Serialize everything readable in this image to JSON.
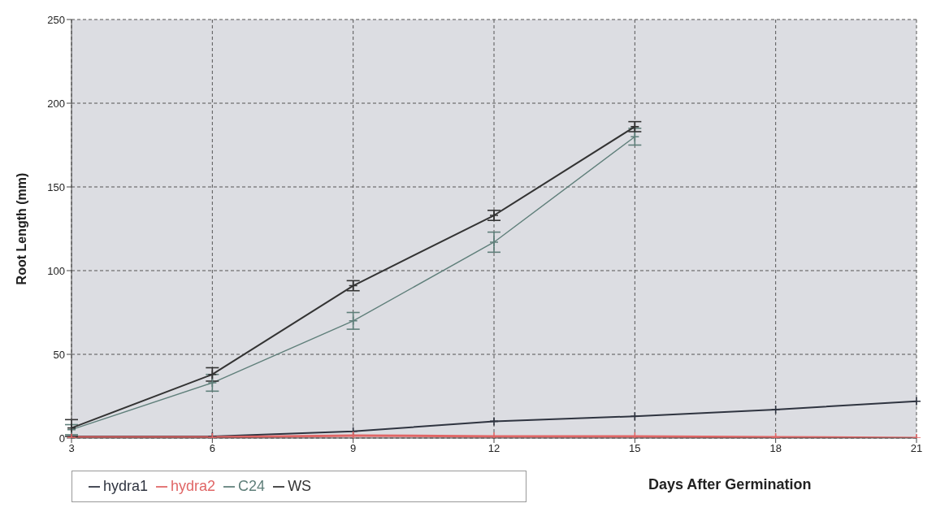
{
  "chart_data": {
    "type": "line",
    "xlabel": "Days After Germination",
    "ylabel": "Root      Length       (mm)",
    "categories": [
      "3",
      "6",
      "9",
      "12",
      "15",
      "18",
      "21"
    ],
    "series": [
      {
        "name": "hydra1",
        "color": "#2f3440",
        "values": [
          1,
          1,
          4,
          10,
          13,
          17,
          22
        ]
      },
      {
        "name": "hydra2",
        "color": "#e06666",
        "values": [
          0.5,
          0.5,
          1.5,
          1,
          1,
          0.5,
          0
        ]
      },
      {
        "name": "C24",
        "color": "#5f7f7a",
        "values": [
          5,
          33,
          70,
          117,
          180,
          null,
          null
        ],
        "errors": [
          3,
          5,
          5,
          6,
          5,
          null,
          null
        ]
      },
      {
        "name": "WS",
        "color": "#333333",
        "values": [
          6,
          38,
          91,
          133,
          186,
          null,
          null
        ],
        "errors": [
          5,
          4,
          3,
          3,
          3,
          null,
          null
        ]
      }
    ],
    "ylim": [
      0,
      250
    ],
    "yticks": [
      0,
      50,
      100,
      150,
      200,
      250
    ],
    "grid": true,
    "legend": "bottom left",
    "marker": "cross",
    "line_style": "solid"
  }
}
